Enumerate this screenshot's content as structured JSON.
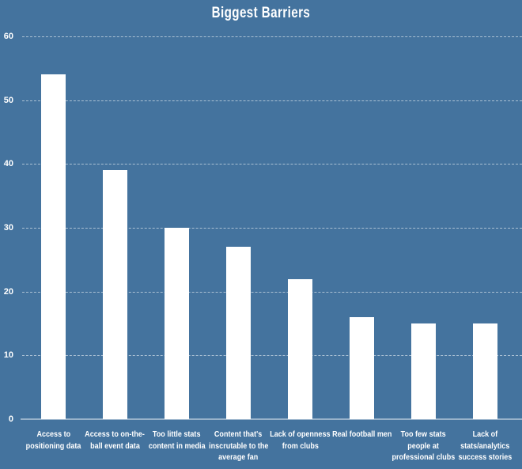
{
  "chart_data": {
    "type": "bar",
    "title": "Biggest Barriers",
    "categories": [
      "Access to positioning data",
      "Access to on-the-ball event data",
      "Too little stats content in media",
      "Content that's inscrutable to the average fan",
      "Lack of openness from clubs",
      "Real football men",
      "Too few stats people at professional clubs",
      "Lack of stats/analytics success stories"
    ],
    "category_lines": [
      [
        "Access to",
        "positioning data"
      ],
      [
        "Access to on-the-",
        "ball event data"
      ],
      [
        "Too little stats",
        "content in media"
      ],
      [
        "Content that's",
        "inscrutable to the",
        "average fan"
      ],
      [
        "Lack of openness",
        "from clubs"
      ],
      [
        "Real football men"
      ],
      [
        "Too few stats",
        "people at",
        "professional clubs"
      ],
      [
        "Lack of",
        "stats/analytics",
        "success stories"
      ]
    ],
    "values": [
      54,
      39,
      30,
      27,
      22,
      16,
      15,
      15
    ],
    "xlabel": "",
    "ylabel": "",
    "ylim": [
      0,
      60
    ],
    "yticks": [
      0,
      10,
      20,
      30,
      40,
      50,
      60
    ],
    "grid": "horizontal-dashed",
    "legend": false,
    "colors": {
      "background": "#44739E",
      "bar": "#FFFFFF",
      "grid_line": "rgba(255,255,255,0.55)",
      "axis_line": "rgba(255,255,255,0.45)",
      "text": "#FFFFFF"
    }
  }
}
